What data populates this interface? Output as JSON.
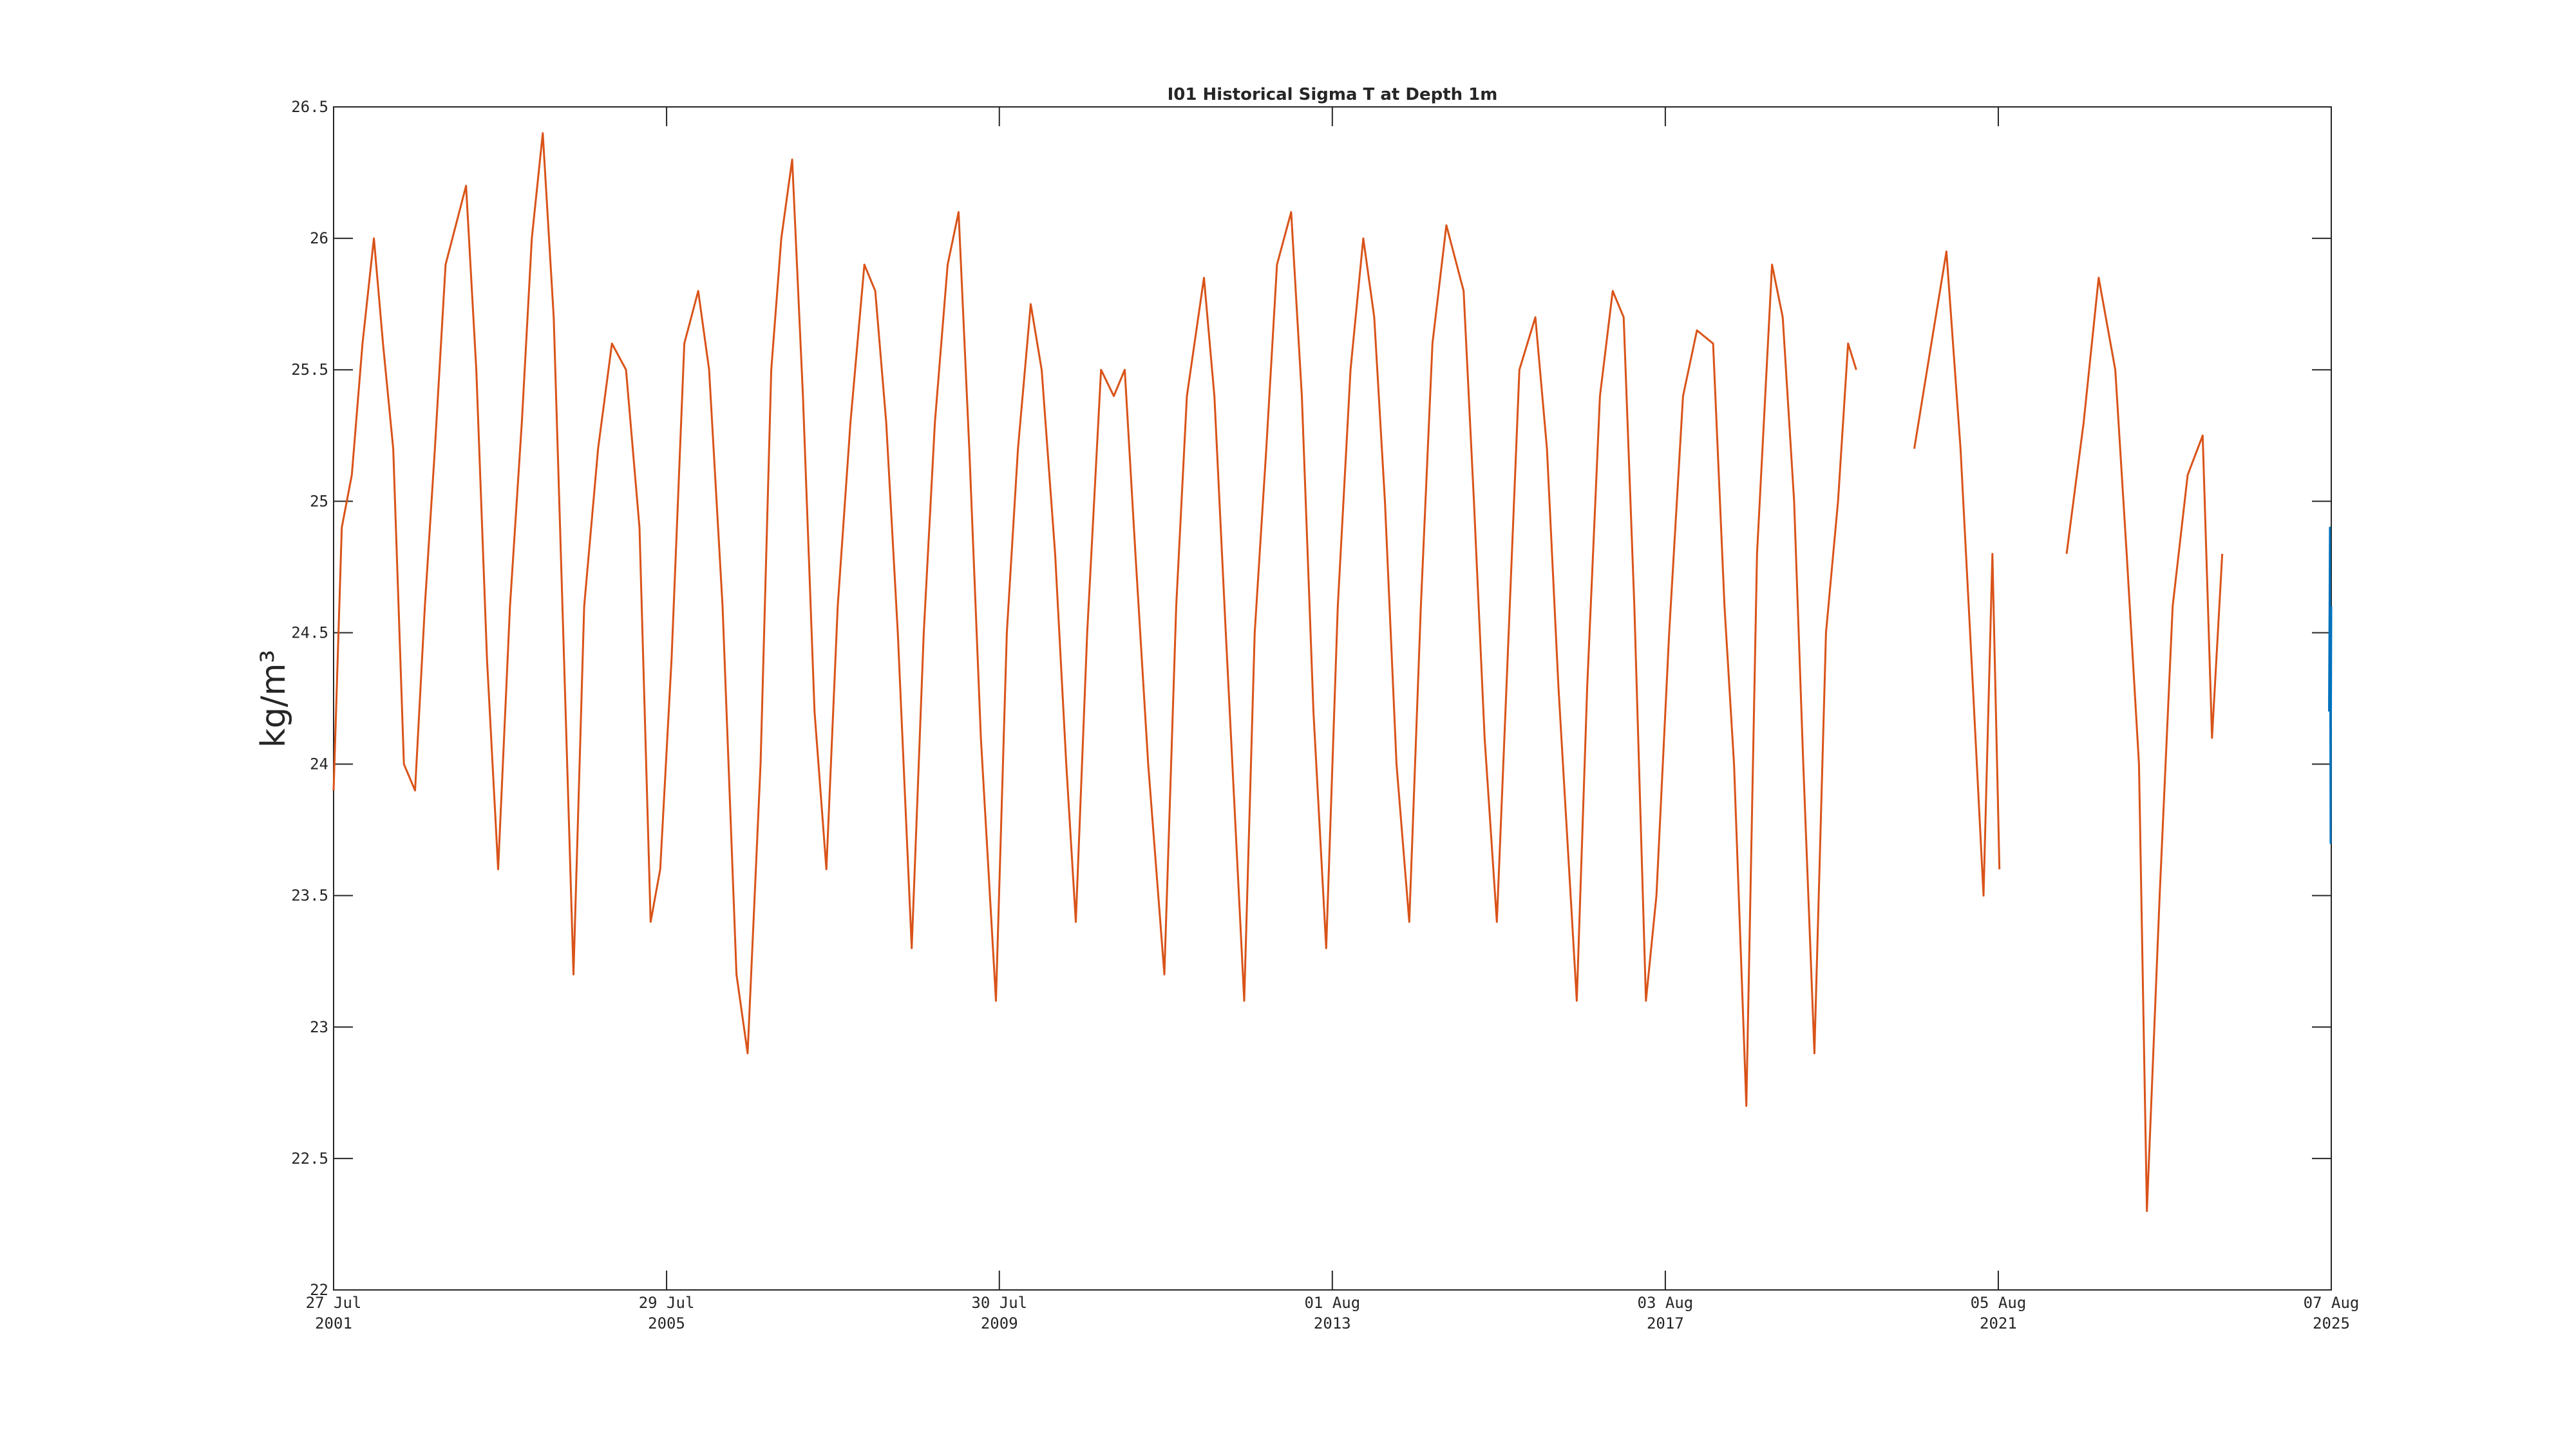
{
  "chart_data": {
    "type": "line",
    "title": "I01 Historical Sigma T at Depth 1m",
    "ylabel": "kg/m³",
    "xlim": [
      "2001-07-27",
      "2025-08-07"
    ],
    "xticks": [
      {
        "value": "2001-07-27",
        "label": [
          "27 Jul",
          "2001"
        ]
      },
      {
        "value": "2005-07-29",
        "label": [
          "29 Jul",
          "2005"
        ]
      },
      {
        "value": "2009-07-30",
        "label": [
          "30 Jul",
          "2009"
        ]
      },
      {
        "value": "2013-08-01",
        "label": [
          "01 Aug",
          "2013"
        ]
      },
      {
        "value": "2017-08-03",
        "label": [
          "03 Aug",
          "2017"
        ]
      },
      {
        "value": "2021-08-05",
        "label": [
          "05 Aug",
          "2021"
        ]
      },
      {
        "value": "2025-08-07",
        "label": [
          "07 Aug",
          "2025"
        ]
      }
    ],
    "ylim": [
      22,
      26.5
    ],
    "yticks": [
      22,
      22.5,
      23,
      23.5,
      24,
      24.5,
      25,
      25.5,
      26,
      26.5
    ],
    "series": [
      {
        "color": "#d95319",
        "x": [
          "2001-07-27",
          "2001-09-01",
          "2001-10-15",
          "2001-12-01",
          "2002-01-20",
          "2002-03-01",
          "2002-04-15",
          "2002-06-01",
          "2002-07-20",
          "2002-09-01",
          "2002-10-15",
          "2002-12-01",
          "2003-03-01",
          "2003-04-15",
          "2003-06-01",
          "2003-07-20",
          "2003-09-10",
          "2003-11-01",
          "2003-12-15",
          "2004-02-01",
          "2004-03-20",
          "2004-05-01",
          "2004-06-15",
          "2004-08-01",
          "2004-10-01",
          "2004-12-01",
          "2005-02-01",
          "2005-04-01",
          "2005-05-20",
          "2005-07-01",
          "2005-08-20",
          "2005-10-15",
          "2005-12-15",
          "2006-02-01",
          "2006-04-01",
          "2006-06-01",
          "2006-07-20",
          "2006-09-15",
          "2006-11-01",
          "2006-12-15",
          "2007-02-01",
          "2007-03-20",
          "2007-05-10",
          "2007-07-01",
          "2007-08-20",
          "2007-10-15",
          "2007-12-15",
          "2008-02-01",
          "2008-03-20",
          "2008-05-10",
          "2008-07-10",
          "2008-09-01",
          "2008-10-20",
          "2008-12-15",
          "2009-02-01",
          "2009-03-20",
          "2009-05-10",
          "2009-07-15",
          "2009-09-01",
          "2009-10-20",
          "2009-12-15",
          "2010-02-01",
          "2010-04-01",
          "2010-05-20",
          "2010-07-01",
          "2010-08-20",
          "2010-10-20",
          "2010-12-15",
          "2011-02-01",
          "2011-03-20",
          "2011-05-15",
          "2011-07-25",
          "2011-09-15",
          "2011-11-01",
          "2012-01-15",
          "2012-03-01",
          "2012-04-20",
          "2012-07-10",
          "2012-08-25",
          "2012-10-15",
          "2012-12-01",
          "2013-02-01",
          "2013-03-20",
          "2013-05-10",
          "2013-07-05",
          "2013-08-25",
          "2013-10-20",
          "2013-12-15",
          "2014-02-01",
          "2014-03-20",
          "2014-05-10",
          "2014-07-05",
          "2014-08-25",
          "2014-10-15",
          "2014-12-15",
          "2015-03-01",
          "2015-04-15",
          "2015-06-01",
          "2015-07-25",
          "2015-09-10",
          "2015-11-01",
          "2016-01-10",
          "2016-03-01",
          "2016-04-20",
          "2016-07-10",
          "2016-08-25",
          "2016-10-20",
          "2016-12-15",
          "2017-02-01",
          "2017-03-20",
          "2017-05-10",
          "2017-06-25",
          "2017-08-20",
          "2017-10-20",
          "2017-12-20",
          "2018-03-01",
          "2018-04-20",
          "2018-06-01",
          "2018-07-25",
          "2018-09-10",
          "2018-11-15",
          "2019-01-01",
          "2019-02-20",
          "2019-04-01",
          "2019-05-20",
          "2019-07-10",
          "2019-09-01",
          "2019-10-15",
          "2019-11-20",
          null,
          "2020-08-01",
          "2020-10-15",
          "2020-12-20",
          "2021-02-20",
          "2021-04-15",
          "2021-06-01",
          "2021-07-10",
          "2021-08-10",
          null,
          "2022-06-01",
          "2022-08-15",
          "2022-10-20",
          "2023-01-01",
          "2023-02-20",
          "2023-04-15",
          "2023-05-20",
          "2023-07-15",
          "2023-09-10",
          "2023-11-15",
          "2024-01-20",
          "2024-03-01",
          "2024-04-15"
        ],
        "values": [
          23.9,
          24.9,
          25.1,
          25.6,
          26.0,
          25.6,
          25.2,
          24.0,
          23.9,
          24.6,
          25.2,
          25.9,
          26.2,
          25.5,
          24.4,
          23.6,
          24.6,
          25.3,
          26.0,
          26.4,
          25.7,
          24.5,
          23.2,
          24.6,
          25.2,
          25.6,
          25.5,
          24.9,
          23.4,
          23.6,
          24.4,
          25.6,
          25.8,
          25.5,
          24.6,
          23.2,
          22.9,
          24.0,
          25.5,
          26.0,
          26.3,
          25.4,
          24.2,
          23.6,
          24.6,
          25.3,
          25.9,
          25.8,
          25.3,
          24.5,
          23.3,
          24.5,
          25.3,
          25.9,
          26.1,
          25.2,
          24.1,
          23.1,
          24.5,
          25.2,
          25.75,
          25.5,
          24.8,
          24.0,
          23.4,
          24.5,
          25.5,
          25.4,
          25.5,
          24.8,
          24.0,
          23.2,
          24.6,
          25.4,
          25.85,
          25.4,
          24.5,
          23.1,
          24.5,
          25.2,
          25.9,
          26.1,
          25.4,
          24.2,
          23.3,
          24.6,
          25.5,
          26.0,
          25.7,
          25.0,
          24.0,
          23.4,
          24.6,
          25.6,
          26.05,
          25.8,
          25.0,
          24.1,
          23.4,
          24.4,
          25.5,
          25.7,
          25.2,
          24.3,
          23.1,
          24.3,
          25.4,
          25.8,
          25.7,
          24.6,
          23.1,
          23.5,
          24.5,
          25.4,
          25.65,
          25.6,
          24.6,
          24.0,
          22.7,
          24.8,
          25.9,
          25.7,
          25.0,
          24.0,
          22.9,
          24.5,
          25.0,
          25.6,
          25.5,
          null,
          25.2,
          25.6,
          25.95,
          25.2,
          24.3,
          23.5,
          24.8,
          23.6,
          null,
          24.8,
          25.3,
          25.85,
          25.5,
          24.8,
          24.0,
          22.3,
          23.5,
          24.6,
          25.1,
          25.25,
          24.1,
          24.8
        ]
      },
      {
        "color": "#0072bd",
        "x": [
          "2025-07-28",
          "2025-08-01",
          "2025-08-04",
          "2025-08-07"
        ],
        "values": [
          24.2,
          24.9,
          23.7,
          24.6
        ]
      }
    ]
  }
}
